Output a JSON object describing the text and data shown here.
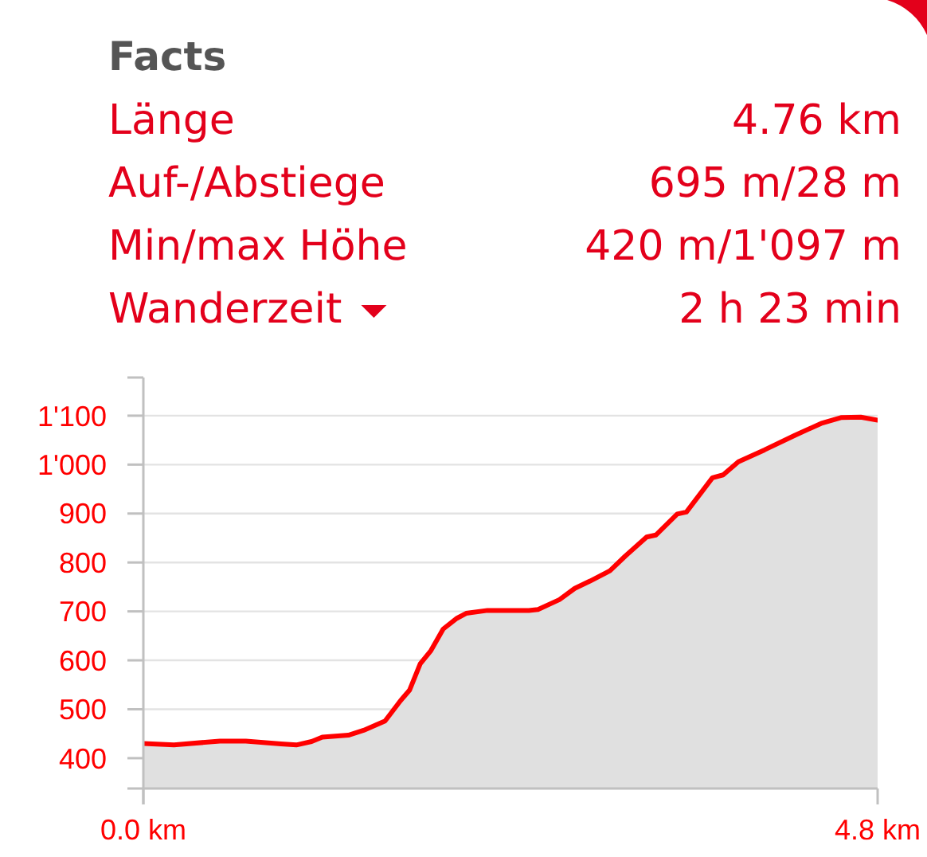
{
  "chart_data": [
    {
      "type": "other",
      "title": "Facts",
      "annotations": [
        "Länge",
        "4.76 km",
        "Auf-/Abstiege",
        "695 m/28 m",
        "Min/max Höhe",
        "420 m/1'097 m",
        "Wanderzeit",
        "2 h 23 min"
      ]
    },
    {
      "type": "area",
      "x": [
        0,
        0.2,
        0.5,
        0.67,
        0.9,
        1.0,
        1.1,
        1.17,
        1.34,
        1.44,
        1.58,
        1.68,
        1.74,
        1.81,
        1.88,
        1.96,
        2.05,
        2.11,
        2.25,
        2.52,
        2.58,
        2.72,
        2.82,
        2.92,
        3.05,
        3.15,
        3.29,
        3.35,
        3.49,
        3.55,
        3.72,
        3.79,
        3.89,
        4.06,
        4.26,
        4.43,
        4.56,
        4.69,
        4.8
      ],
      "series": [
        {
          "color": "#ff0000",
          "values": [
            430,
            427,
            435,
            435,
            429,
            427,
            434,
            443,
            447,
            457,
            476,
            517,
            539,
            593,
            620,
            664,
            686,
            696,
            702,
            702,
            704,
            724,
            747,
            762,
            783,
            813,
            852,
            856,
            899,
            903,
            973,
            979,
            1006,
            1030,
            1060,
            1084,
            1096,
            1097,
            1091
          ]
        }
      ],
      "xlim": [
        0,
        4.8
      ],
      "xticks": [
        {
          "value": 0,
          "label": "0.0 km"
        },
        {
          "value": 4.8,
          "label": "4.8 km"
        }
      ],
      "ylim": [
        338,
        1178
      ],
      "yticks": [
        400,
        500,
        600,
        700,
        800,
        900,
        {
          "value": 1000,
          "label": "1'000"
        },
        {
          "value": 1100,
          "label": "1'100"
        }
      ],
      "grid": "y"
    }
  ]
}
